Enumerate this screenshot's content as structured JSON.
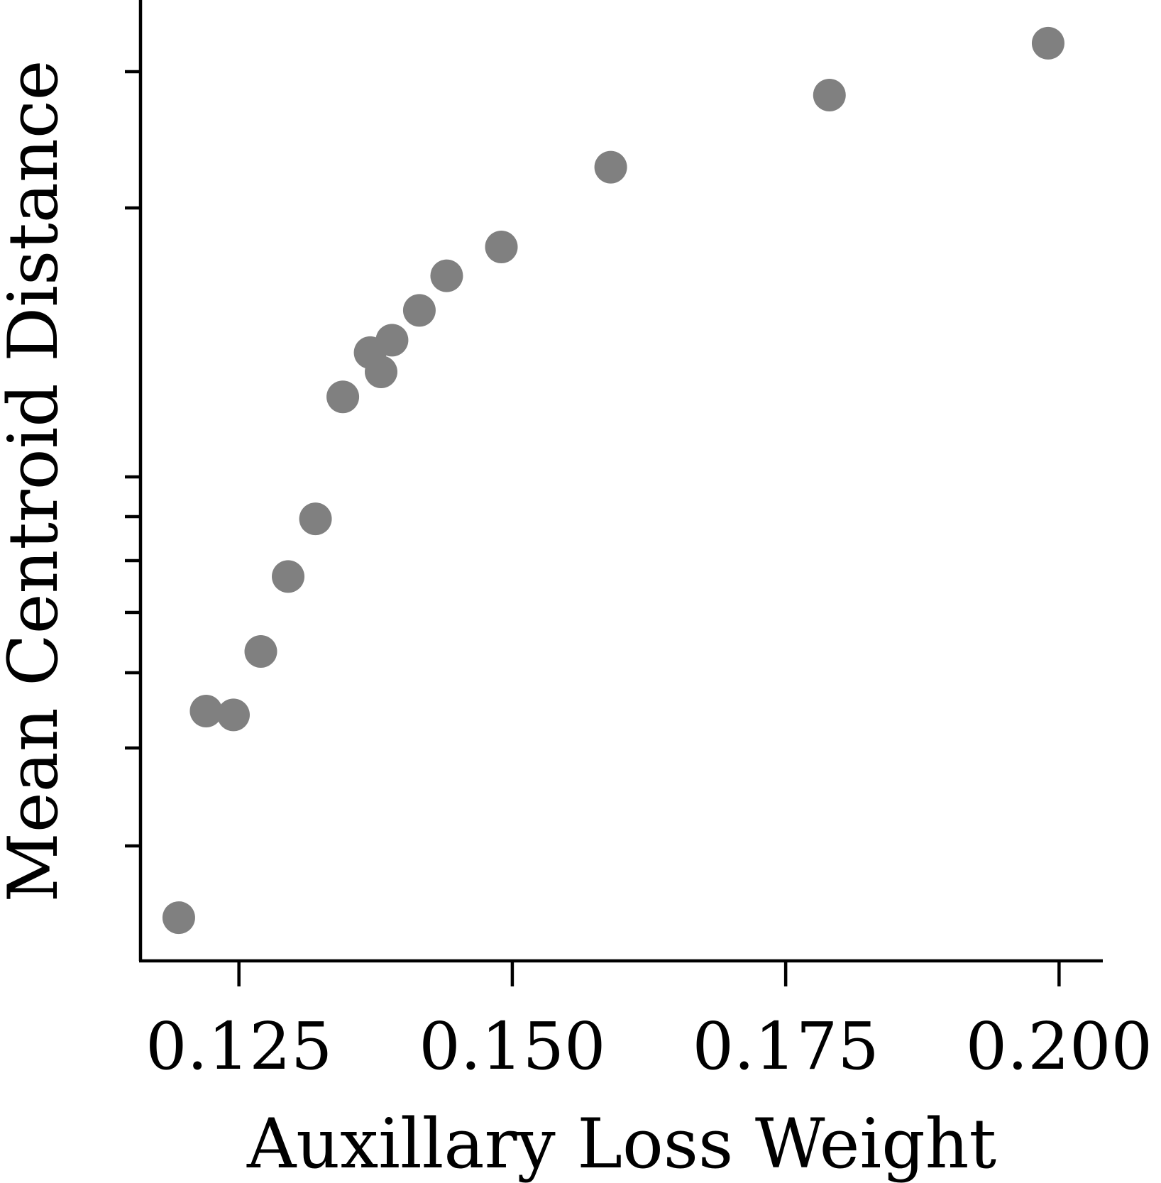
{
  "chart_data": {
    "type": "scatter",
    "title": "",
    "xlabel": "Auxillary Loss Weight",
    "ylabel": "Mean Centroid Distance",
    "x_ticks": [
      0.125,
      0.15,
      0.175,
      0.2
    ],
    "x_tick_labels": [
      "0.125",
      "0.150",
      "0.175",
      "0.200"
    ],
    "xlim": [
      0.116,
      0.204
    ],
    "ylim": [
      0,
      1
    ],
    "y_scale": "log",
    "y_tick_labels_shown": false,
    "grid": false,
    "legend": "none",
    "marker_color": "#808080",
    "points": [
      {
        "x": 0.1195,
        "y": 0.045
      },
      {
        "x": 0.122,
        "y": 0.26
      },
      {
        "x": 0.1245,
        "y": 0.256
      },
      {
        "x": 0.127,
        "y": 0.322
      },
      {
        "x": 0.1295,
        "y": 0.4
      },
      {
        "x": 0.132,
        "y": 0.46
      },
      {
        "x": 0.1345,
        "y": 0.587
      },
      {
        "x": 0.137,
        "y": 0.633
      },
      {
        "x": 0.138,
        "y": 0.613
      },
      {
        "x": 0.139,
        "y": 0.646
      },
      {
        "x": 0.1415,
        "y": 0.677
      },
      {
        "x": 0.144,
        "y": 0.713
      },
      {
        "x": 0.149,
        "y": 0.743
      },
      {
        "x": 0.159,
        "y": 0.826
      },
      {
        "x": 0.179,
        "y": 0.901
      },
      {
        "x": 0.199,
        "y": 0.955
      }
    ]
  }
}
